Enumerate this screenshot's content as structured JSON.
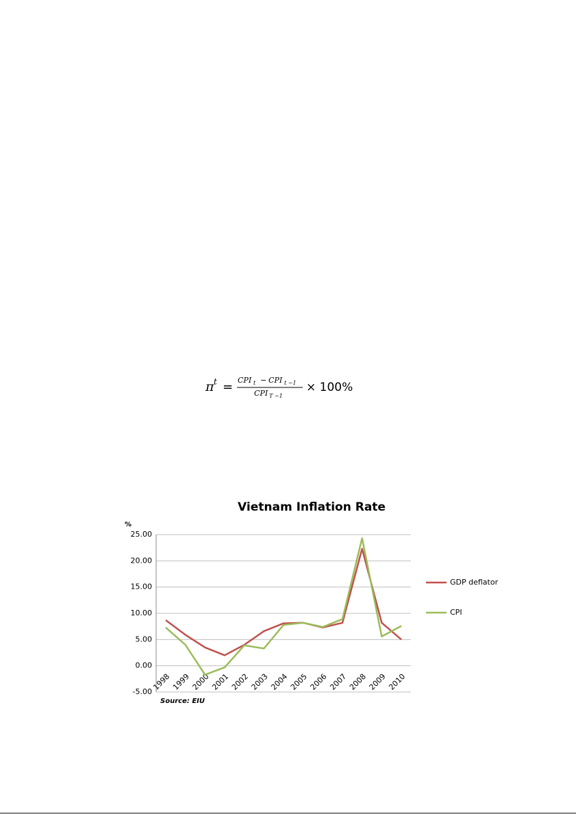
{
  "formula": {
    "lhs": "π",
    "lhs_sup": "t",
    "equals": "=",
    "num_a": "CPI",
    "num_a_sub": "t",
    "minus": "−",
    "num_b": "CPI",
    "num_b_sub": "t −1",
    "den": "CPI",
    "den_sub": "T −1",
    "times": "× 100%"
  },
  "chart_data": {
    "type": "line",
    "title": "Vietnam Inflation Rate",
    "y_label": "%",
    "source": "Source: EIU",
    "categories": [
      "1998",
      "1999",
      "2000",
      "2001",
      "2002",
      "2003",
      "2004",
      "2005",
      "2006",
      "2007",
      "2008",
      "2009",
      "2010"
    ],
    "series": [
      {
        "name": "GDP deflator",
        "color": "#c0504d",
        "values": [
          8.7,
          5.9,
          3.5,
          2.0,
          4.0,
          6.6,
          8.1,
          8.2,
          7.3,
          8.2,
          22.3,
          8.2,
          5.0
        ]
      },
      {
        "name": "CPI",
        "color": "#9bbb59",
        "values": [
          7.3,
          4.0,
          -1.7,
          -0.3,
          3.9,
          3.3,
          7.8,
          8.2,
          7.4,
          8.9,
          24.3,
          5.6,
          7.6
        ]
      }
    ],
    "ylim": [
      -5,
      25
    ],
    "yticks": [
      {
        "value": -5,
        "label": "-5.00"
      },
      {
        "value": 0,
        "label": "0.00"
      },
      {
        "value": 5,
        "label": "5.00"
      },
      {
        "value": 10,
        "label": "10.00"
      },
      {
        "value": 15,
        "label": "15.00"
      },
      {
        "value": 20,
        "label": "20.00"
      },
      {
        "value": 25,
        "label": "25.00"
      }
    ],
    "grid": true
  }
}
